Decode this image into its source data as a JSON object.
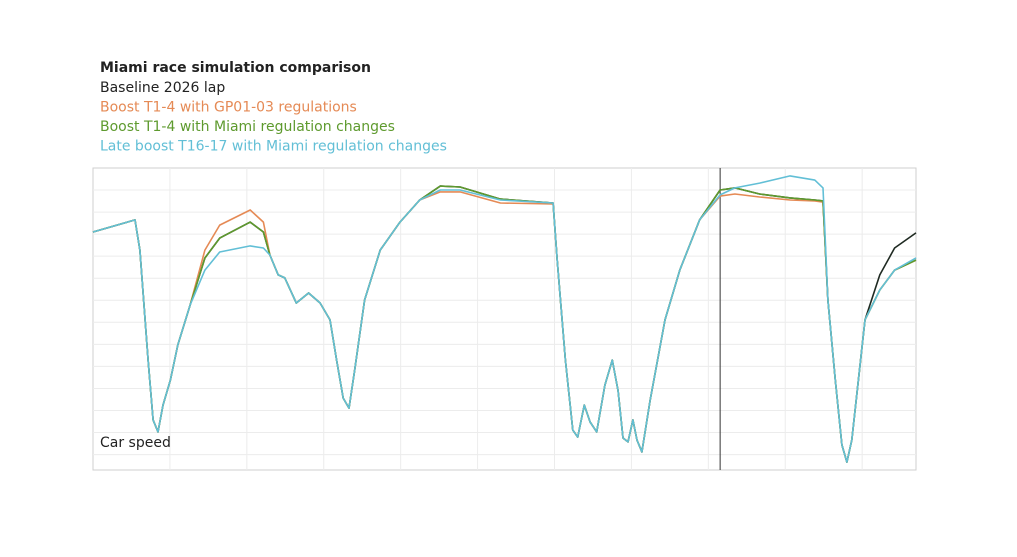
{
  "chart_data": {
    "type": "line",
    "title": "Miami race simulation comparison",
    "ylabel": "Car speed",
    "xlim": [
      0,
      100
    ],
    "ylim": [
      0,
      100
    ],
    "grid": true,
    "vline_x": 76.2,
    "x": [
      0,
      5.1,
      5.7,
      6.7,
      7.3,
      7.9,
      8.5,
      9.4,
      10.3,
      11.8,
      13.6,
      15.4,
      19.1,
      20.7,
      21.5,
      22.5,
      23.3,
      24.7,
      26.2,
      27.6,
      28.8,
      29.6,
      30.4,
      31.1,
      31.8,
      33.0,
      34.9,
      37.3,
      39.7,
      42.2,
      44.6,
      49.5,
      55.9,
      56.4,
      57.4,
      58.3,
      58.9,
      59.7,
      60.4,
      61.2,
      62.2,
      63.1,
      63.8,
      64.4,
      65.0,
      65.6,
      66.1,
      66.7,
      67.7,
      69.5,
      71.3,
      73.7,
      76.2,
      78.0,
      81.0,
      84.7,
      87.7,
      88.7,
      89.3,
      90.2,
      91.0,
      91.6,
      92.2,
      93.0,
      93.8,
      95.6,
      97.4,
      100
    ],
    "series": [
      {
        "name": "Baseline 2026 lap",
        "color": "#1f2a22",
        "values": [
          78.8,
          82.8,
          72.8,
          36.4,
          16.6,
          12.6,
          21.5,
          29.8,
          41.4,
          54.6,
          70.2,
          76.8,
          82.1,
          78.8,
          71.2,
          64.6,
          63.6,
          55.3,
          58.6,
          55.3,
          49.7,
          36.4,
          23.8,
          20.5,
          33.1,
          56.3,
          72.8,
          82.1,
          89.4,
          94.0,
          93.7,
          89.7,
          88.4,
          69.5,
          36.4,
          13.2,
          10.9,
          21.5,
          15.9,
          12.6,
          28.1,
          36.4,
          26.2,
          10.6,
          9.3,
          16.6,
          9.9,
          6.0,
          23.2,
          49.7,
          66.2,
          82.8,
          92.7,
          93.4,
          91.4,
          90.1,
          89.4,
          89.1,
          56.3,
          29.8,
          8.3,
          2.6,
          9.9,
          29.8,
          49.7,
          64.6,
          73.5,
          78.5
        ]
      },
      {
        "name": "Boost T1-4 with GP01-03 regulations",
        "color": "#e58a55",
        "values": [
          78.8,
          82.8,
          72.8,
          36.4,
          16.6,
          12.6,
          21.5,
          29.8,
          41.4,
          54.6,
          72.8,
          81.1,
          86.1,
          82.1,
          71.2,
          64.6,
          63.6,
          55.3,
          58.6,
          55.3,
          49.7,
          36.4,
          23.8,
          20.5,
          33.1,
          56.3,
          72.8,
          82.1,
          89.4,
          92.1,
          92.1,
          88.4,
          88.1,
          69.5,
          36.4,
          13.2,
          10.9,
          21.5,
          15.9,
          12.6,
          28.1,
          36.4,
          26.2,
          10.6,
          9.3,
          16.6,
          9.9,
          6.0,
          23.2,
          49.7,
          66.2,
          82.8,
          90.7,
          91.4,
          90.4,
          89.4,
          89.1,
          88.7,
          56.3,
          29.8,
          8.3,
          2.6,
          9.9,
          29.8,
          49.7,
          59.6,
          66.2,
          69.5
        ]
      },
      {
        "name": "Boost T1-4 with Miami regulation changes",
        "color": "#5e9a2e",
        "values": [
          78.8,
          82.8,
          72.8,
          36.4,
          16.6,
          12.6,
          21.5,
          29.8,
          41.4,
          54.6,
          70.2,
          76.8,
          82.1,
          78.8,
          71.2,
          64.6,
          63.6,
          55.3,
          58.6,
          55.3,
          49.7,
          36.4,
          23.8,
          20.5,
          33.1,
          56.3,
          72.8,
          82.1,
          89.4,
          94.0,
          93.7,
          89.7,
          88.4,
          69.5,
          36.4,
          13.2,
          10.9,
          21.5,
          15.9,
          12.6,
          28.1,
          36.4,
          26.2,
          10.6,
          9.3,
          16.6,
          9.9,
          6.0,
          23.2,
          49.7,
          66.2,
          82.8,
          92.7,
          93.4,
          91.4,
          90.1,
          89.4,
          89.1,
          56.3,
          29.8,
          8.3,
          2.6,
          9.9,
          29.8,
          49.7,
          59.6,
          66.2,
          69.5
        ]
      },
      {
        "name": "Late boost T16-17 with Miami regulation changes",
        "color": "#62bfd6",
        "values": [
          78.8,
          82.8,
          72.8,
          36.4,
          16.6,
          12.6,
          21.5,
          29.8,
          41.4,
          54.6,
          66.2,
          72.2,
          74.2,
          73.5,
          71.2,
          64.6,
          63.6,
          55.3,
          58.6,
          55.3,
          49.7,
          36.4,
          23.8,
          20.5,
          33.1,
          56.3,
          72.8,
          82.1,
          89.4,
          92.7,
          92.7,
          89.4,
          88.4,
          69.5,
          36.4,
          13.2,
          10.9,
          21.5,
          15.9,
          12.6,
          28.1,
          36.4,
          26.2,
          10.6,
          9.3,
          16.6,
          9.9,
          6.0,
          23.2,
          49.7,
          66.2,
          82.8,
          91.1,
          93.4,
          95.0,
          97.4,
          96.0,
          93.4,
          56.3,
          29.8,
          8.3,
          2.6,
          9.9,
          29.8,
          49.7,
          59.6,
          66.2,
          70.2
        ]
      }
    ]
  }
}
